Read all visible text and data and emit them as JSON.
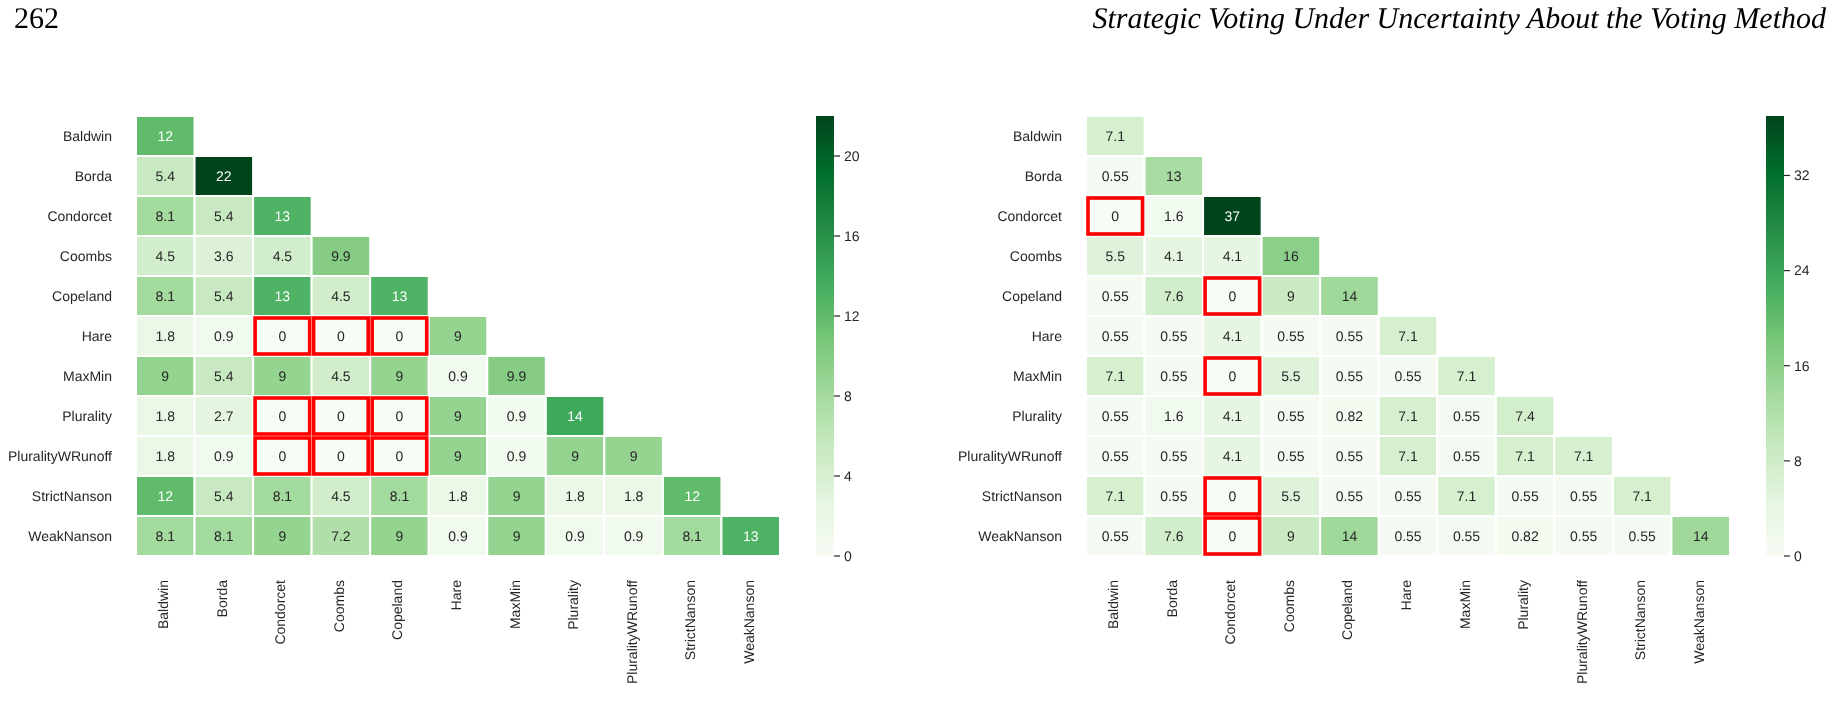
{
  "chart_data": [
    {
      "type": "heatmap",
      "annotations": [
        "262",
        "Strategic Voting Under Uncertainty About the Voting Method"
      ],
      "categories": [
        "Baldwin",
        "Borda",
        "Condorcet",
        "Coombs",
        "Copeland",
        "Hare",
        "MaxMin",
        "Plurality",
        "PluralityWRunoff",
        "StrictNanson",
        "WeakNanson"
      ],
      "y_categories": [
        "Baldwin",
        "Borda",
        "Condorcet",
        "Coombs",
        "Copeland",
        "Hare",
        "MaxMin",
        "Plurality",
        "PluralityWRunoff",
        "StrictNanson",
        "WeakNanson"
      ],
      "cells": [
        [
          12,
          null,
          null,
          null,
          null,
          null,
          null,
          null,
          null,
          null,
          null
        ],
        [
          5.4,
          22,
          null,
          null,
          null,
          null,
          null,
          null,
          null,
          null,
          null
        ],
        [
          8.1,
          5.4,
          13,
          null,
          null,
          null,
          null,
          null,
          null,
          null,
          null
        ],
        [
          4.5,
          3.6,
          4.5,
          9.9,
          null,
          null,
          null,
          null,
          null,
          null,
          null
        ],
        [
          8.1,
          5.4,
          13,
          4.5,
          13,
          null,
          null,
          null,
          null,
          null,
          null
        ],
        [
          1.8,
          0.9,
          0,
          0,
          0,
          9,
          null,
          null,
          null,
          null,
          null
        ],
        [
          9,
          5.4,
          9,
          4.5,
          9,
          0.9,
          9.9,
          null,
          null,
          null,
          null
        ],
        [
          1.8,
          2.7,
          0,
          0,
          0,
          9,
          0.9,
          14,
          null,
          null,
          null
        ],
        [
          1.8,
          0.9,
          0,
          0,
          0,
          9,
          0.9,
          9,
          9,
          null,
          null
        ],
        [
          12,
          5.4,
          8.1,
          4.5,
          8.1,
          1.8,
          9,
          1.8,
          1.8,
          12,
          null
        ],
        [
          8.1,
          8.1,
          9,
          7.2,
          9,
          0.9,
          9,
          0.9,
          0.9,
          8.1,
          13
        ]
      ],
      "clim": [
        0,
        22
      ],
      "cticks": [
        0,
        4,
        8,
        12,
        16,
        20
      ],
      "data_labels": true
    },
    {
      "type": "heatmap",
      "categories": [
        "Baldwin",
        "Borda",
        "Condorcet",
        "Coombs",
        "Copeland",
        "Hare",
        "MaxMin",
        "Plurality",
        "PluralityWRunoff",
        "StrictNanson",
        "WeakNanson"
      ],
      "y_categories": [
        "Baldwin",
        "Borda",
        "Condorcet",
        "Coombs",
        "Copeland",
        "Hare",
        "MaxMin",
        "Plurality",
        "PluralityWRunoff",
        "StrictNanson",
        "WeakNanson"
      ],
      "cells": [
        [
          7.1,
          null,
          null,
          null,
          null,
          null,
          null,
          null,
          null,
          null,
          null
        ],
        [
          0.55,
          13,
          null,
          null,
          null,
          null,
          null,
          null,
          null,
          null,
          null
        ],
        [
          0,
          1.6,
          37,
          null,
          null,
          null,
          null,
          null,
          null,
          null,
          null
        ],
        [
          5.5,
          4.1,
          4.1,
          16,
          null,
          null,
          null,
          null,
          null,
          null,
          null
        ],
        [
          0.55,
          7.6,
          0,
          9,
          14,
          null,
          null,
          null,
          null,
          null,
          null
        ],
        [
          0.55,
          0.55,
          4.1,
          0.55,
          0.55,
          7.1,
          null,
          null,
          null,
          null,
          null
        ],
        [
          7.1,
          0.55,
          0,
          5.5,
          0.55,
          0.55,
          7.1,
          null,
          null,
          null,
          null
        ],
        [
          0.55,
          1.6,
          4.1,
          0.55,
          0.82,
          7.1,
          0.55,
          7.4,
          null,
          null,
          null
        ],
        [
          0.55,
          0.55,
          4.1,
          0.55,
          0.55,
          7.1,
          0.55,
          7.1,
          7.1,
          null,
          null
        ],
        [
          7.1,
          0.55,
          0,
          5.5,
          0.55,
          0.55,
          7.1,
          0.55,
          0.55,
          7.1,
          null
        ],
        [
          0.55,
          7.6,
          0,
          9,
          14,
          0.55,
          0.55,
          0.82,
          0.55,
          0.55,
          14
        ]
      ],
      "clim": [
        0,
        37
      ],
      "cticks": [
        0,
        8,
        16,
        24,
        32
      ],
      "data_labels": true
    }
  ]
}
